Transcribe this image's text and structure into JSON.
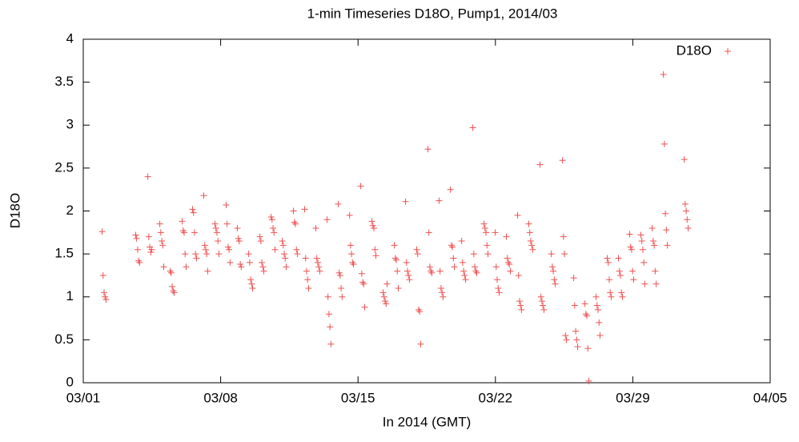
{
  "chart_data": {
    "type": "scatter",
    "title": "1-min Timeseries D18O, Pump1, 2014/03",
    "x_label": "In 2014 (GMT)",
    "y_label": "D18O",
    "legend": "top right",
    "grid": false,
    "xlim": [
      1,
      36
    ],
    "xticks": [
      {
        "value": 1,
        "label": "03/01"
      },
      {
        "value": 8,
        "label": "03/08"
      },
      {
        "value": 15,
        "label": "03/15"
      },
      {
        "value": 22,
        "label": "03/22"
      },
      {
        "value": 29,
        "label": "03/29"
      },
      {
        "value": 36,
        "label": "04/05"
      }
    ],
    "ylim": [
      0,
      4
    ],
    "yticks": [
      0,
      0.5,
      1,
      1.5,
      2,
      2.5,
      3,
      3.5,
      4
    ],
    "x": [
      1.96,
      2.01,
      2.06,
      2.11,
      2.16,
      3.67,
      3.72,
      3.77,
      3.82,
      3.87,
      4.29,
      4.34,
      4.39,
      4.44,
      4.49,
      4.9,
      4.95,
      5,
      5.05,
      5.1,
      5.43,
      5.48,
      5.53,
      5.58,
      5.63,
      6.04,
      6.09,
      6.14,
      6.19,
      6.24,
      6.57,
      6.62,
      6.67,
      6.72,
      6.77,
      7.14,
      7.19,
      7.24,
      7.29,
      7.34,
      7.71,
      7.76,
      7.81,
      7.86,
      7.91,
      8.28,
      8.33,
      8.38,
      8.43,
      8.48,
      8.85,
      8.9,
      8.95,
      9,
      9.05,
      9.43,
      9.48,
      9.53,
      9.58,
      9.63,
      10,
      10.05,
      10.1,
      10.15,
      10.2,
      10.57,
      10.62,
      10.67,
      10.72,
      10.77,
      11.14,
      11.19,
      11.24,
      11.29,
      11.34,
      11.71,
      11.76,
      11.81,
      11.86,
      11.91,
      12.28,
      12.33,
      12.38,
      12.43,
      12.48,
      12.85,
      12.9,
      12.95,
      13,
      13.05,
      13.42,
      13.47,
      13.52,
      13.57,
      13.62,
      13.99,
      14.04,
      14.09,
      14.14,
      14.19,
      14.57,
      14.62,
      14.67,
      14.72,
      14.77,
      15.14,
      15.19,
      15.24,
      15.29,
      15.34,
      15.71,
      15.76,
      15.81,
      15.86,
      15.91,
      16.28,
      16.33,
      16.38,
      16.43,
      16.48,
      16.85,
      16.9,
      16.95,
      17,
      17.05,
      17.42,
      17.47,
      17.52,
      17.57,
      17.62,
      17.99,
      18.04,
      18.09,
      18.14,
      18.19,
      18.56,
      18.61,
      18.66,
      18.71,
      18.76,
      19.13,
      19.18,
      19.23,
      19.28,
      19.33,
      19.71,
      19.76,
      19.81,
      19.86,
      19.91,
      20.28,
      20.33,
      20.38,
      20.43,
      20.48,
      20.85,
      20.9,
      20.95,
      21,
      21.05,
      21.42,
      21.47,
      21.52,
      21.57,
      21.62,
      21.99,
      22.04,
      22.09,
      22.14,
      22.19,
      22.56,
      22.61,
      22.66,
      22.71,
      22.76,
      23.13,
      23.18,
      23.23,
      23.28,
      23.33,
      23.7,
      23.75,
      23.8,
      23.85,
      23.9,
      24.27,
      24.32,
      24.37,
      24.42,
      24.47,
      24.85,
      24.9,
      24.95,
      25,
      25.05,
      25.42,
      25.47,
      25.52,
      25.57,
      25.62,
      25.99,
      26.04,
      26.09,
      26.14,
      26.19,
      26.56,
      26.61,
      26.66,
      26.71,
      26.76,
      27.13,
      27.18,
      27.23,
      27.28,
      27.33,
      27.7,
      27.75,
      27.8,
      27.85,
      27.9,
      28.27,
      28.32,
      28.37,
      28.42,
      28.47,
      28.84,
      28.89,
      28.94,
      28.99,
      29.04,
      29.41,
      29.46,
      29.51,
      29.56,
      29.61,
      29.99,
      30.04,
      30.09,
      30.14,
      30.19,
      30.56,
      30.61,
      30.66,
      30.71,
      30.76,
      31.62,
      31.67,
      31.72,
      31.77,
      31.82
    ],
    "series": [
      {
        "name": "D18O",
        "color": "#f05050",
        "values": [
          1.76,
          1.25,
          1.05,
          1.0,
          0.97,
          1.72,
          1.68,
          1.55,
          1.42,
          1.4,
          2.4,
          1.7,
          1.58,
          1.52,
          1.55,
          1.85,
          1.75,
          1.65,
          1.6,
          1.35,
          1.3,
          1.28,
          1.12,
          1.07,
          1.05,
          1.88,
          1.77,
          1.75,
          1.5,
          1.35,
          2.02,
          1.98,
          1.75,
          1.5,
          1.45,
          2.18,
          1.6,
          1.55,
          1.5,
          1.3,
          1.85,
          1.8,
          1.75,
          1.65,
          1.5,
          2.07,
          1.85,
          1.58,
          1.55,
          1.4,
          1.8,
          1.68,
          1.65,
          1.38,
          1.35,
          1.5,
          1.4,
          1.2,
          1.15,
          1.1,
          1.7,
          1.65,
          1.4,
          1.35,
          1.3,
          1.93,
          1.9,
          1.8,
          1.75,
          1.55,
          1.65,
          1.6,
          1.5,
          1.45,
          1.35,
          2.0,
          1.87,
          1.85,
          1.55,
          1.5,
          2.02,
          1.45,
          1.3,
          1.2,
          1.1,
          1.8,
          1.45,
          1.4,
          1.35,
          1.3,
          1.9,
          1.0,
          0.8,
          0.65,
          0.45,
          2.08,
          1.28,
          1.25,
          1.1,
          1.0,
          1.95,
          1.6,
          1.5,
          1.4,
          1.38,
          2.29,
          1.27,
          1.17,
          1.15,
          0.88,
          1.88,
          1.83,
          1.8,
          1.55,
          1.48,
          1.05,
          1.0,
          0.95,
          0.92,
          1.15,
          1.6,
          1.45,
          1.43,
          1.3,
          1.1,
          2.11,
          1.4,
          1.3,
          1.25,
          1.2,
          1.55,
          1.5,
          0.85,
          0.83,
          0.45,
          2.72,
          1.75,
          1.35,
          1.3,
          1.28,
          2.12,
          1.3,
          1.1,
          1.05,
          1.0,
          2.25,
          1.6,
          1.58,
          1.45,
          1.35,
          1.65,
          1.4,
          1.3,
          1.25,
          1.2,
          2.97,
          1.5,
          1.35,
          1.3,
          1.28,
          1.85,
          1.8,
          1.75,
          1.6,
          1.5,
          1.75,
          1.35,
          1.2,
          1.1,
          1.05,
          1.7,
          1.45,
          1.4,
          1.38,
          1.3,
          1.95,
          1.25,
          0.95,
          0.9,
          0.85,
          1.85,
          1.75,
          1.65,
          1.6,
          1.55,
          2.54,
          1.0,
          0.95,
          0.9,
          0.85,
          1.5,
          1.35,
          1.3,
          1.2,
          1.15,
          2.59,
          1.7,
          1.5,
          0.55,
          0.5,
          1.22,
          0.9,
          0.6,
          0.5,
          0.42,
          0.92,
          0.8,
          0.78,
          0.4,
          0.02,
          1.0,
          0.9,
          0.85,
          0.7,
          0.55,
          1.45,
          1.4,
          1.2,
          1.05,
          1.0,
          1.45,
          1.3,
          1.25,
          1.05,
          1.0,
          1.73,
          1.58,
          1.55,
          1.3,
          1.2,
          1.72,
          1.65,
          1.55,
          1.4,
          1.15,
          1.8,
          1.65,
          1.6,
          1.3,
          1.15,
          3.59,
          2.78,
          1.97,
          1.78,
          1.6,
          2.6,
          2.08,
          2.0,
          1.9,
          1.8
        ]
      }
    ]
  }
}
